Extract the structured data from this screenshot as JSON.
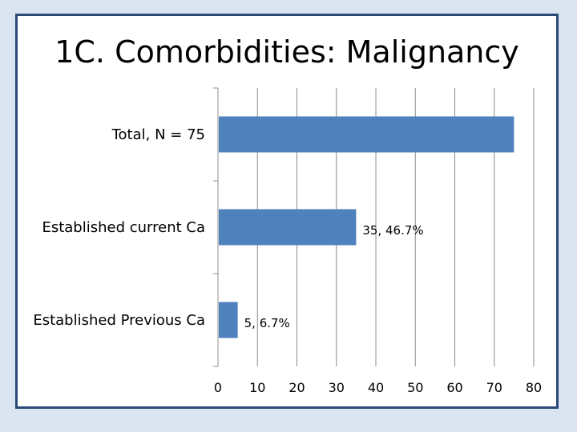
{
  "slide": {
    "title": "1C.  Comorbidities: Malignancy"
  },
  "chart_data": {
    "type": "bar",
    "orientation": "horizontal",
    "title": "1C.  Comorbidities: Malignancy",
    "xlabel": "",
    "ylabel": "",
    "xlim": [
      0,
      80
    ],
    "x_ticks": [
      0,
      10,
      20,
      30,
      40,
      50,
      60,
      70,
      80
    ],
    "grid": "vertical",
    "colors": {
      "bar": "#4f81bd",
      "grid": "#8c8c8c",
      "border": "#2c4a78"
    },
    "categories": [
      "Total, N = 75",
      "Established current Ca",
      "Established Previous Ca"
    ],
    "values": [
      75,
      35,
      5
    ],
    "data_labels": [
      "",
      "35, 46.7%",
      "5, 6.7%"
    ]
  }
}
